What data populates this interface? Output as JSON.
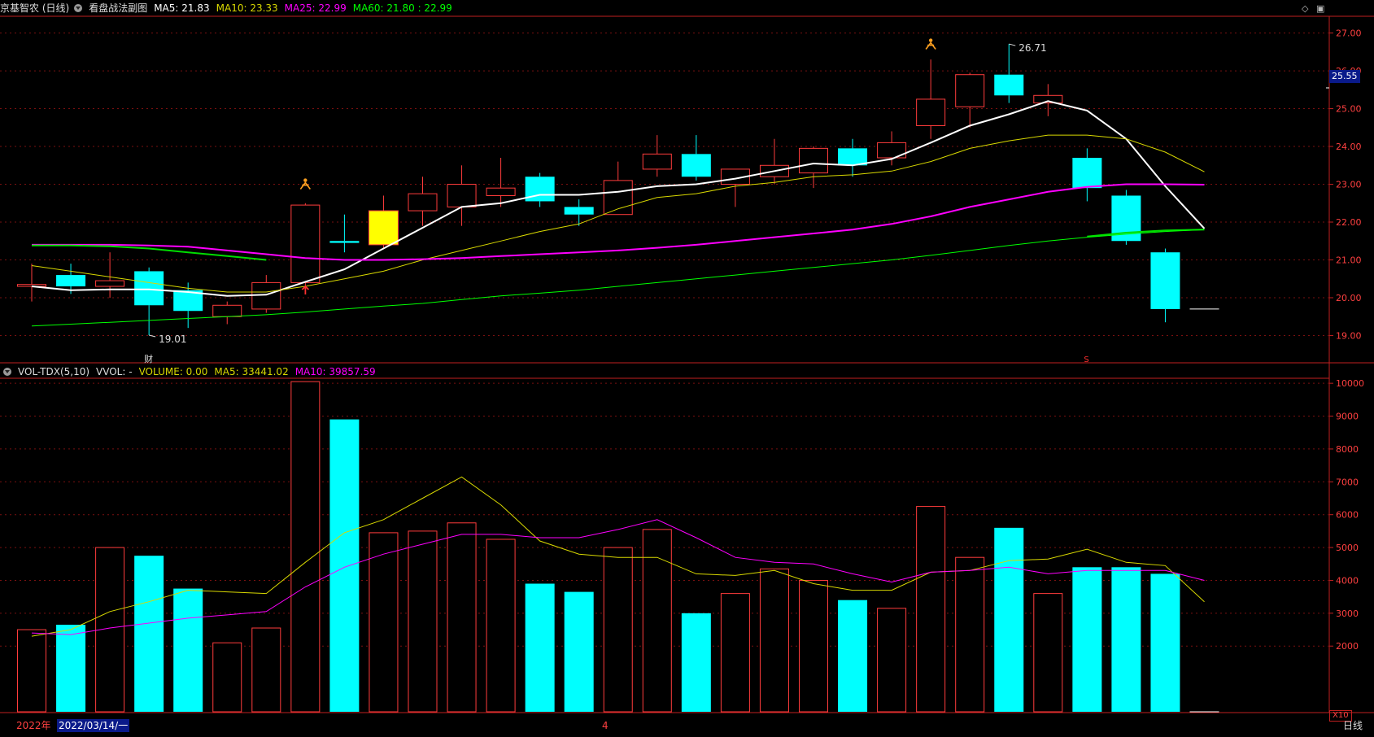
{
  "header": {
    "stock_name": "京基智农 (日线)",
    "indicator_name": "看盘战法副图",
    "ma5": "MA5: 21.83",
    "ma10": "MA10: 23.33",
    "ma25": "MA25: 22.99",
    "ma60": "MA60: 21.80 : 22.99"
  },
  "volume_header": {
    "name": "VOL-TDX(5,10)",
    "vvol": "VVOL: -",
    "volume": "VOLUME: 0.00",
    "ma5": "MA5: 33441.02",
    "ma10": "MA10: 39857.59"
  },
  "footer": {
    "year": "2022年",
    "date": "2022/03/14/一",
    "month_marker": "4",
    "period": "日线",
    "multiplier": "X10"
  },
  "markers": {
    "high_label": "26.71",
    "low_label": "19.01",
    "current_price": "25.55",
    "finance_mark": "财",
    "s_mark": "S"
  },
  "colors": {
    "up": "#ff3c3c",
    "down": "#00ffff",
    "ma5": "#ffffff",
    "ma10": "#d8d800",
    "ma25": "#ff00ff",
    "ma60": "#00ff00",
    "grid": "#7a1010",
    "axis": "#c02020"
  },
  "chart_data": [
    {
      "type": "candlestick",
      "title": "京基智农 (日线)",
      "ylim": [
        18.3,
        27.4
      ],
      "y_ticks": [
        "19.00",
        "20.00",
        "21.00",
        "22.00",
        "23.00",
        "24.00",
        "25.00",
        "26.00",
        "27.00"
      ],
      "candles": [
        {
          "o": 20.3,
          "c": 20.35,
          "h": 20.9,
          "l": 19.9
        },
        {
          "o": 20.6,
          "c": 20.3,
          "h": 20.9,
          "l": 20.1
        },
        {
          "o": 20.3,
          "c": 20.45,
          "h": 21.2,
          "l": 20.0
        },
        {
          "o": 20.7,
          "c": 19.8,
          "h": 20.8,
          "l": 19.01
        },
        {
          "o": 20.2,
          "c": 19.65,
          "h": 20.4,
          "l": 19.2
        },
        {
          "o": 19.5,
          "c": 19.8,
          "h": 19.9,
          "l": 19.3
        },
        {
          "o": 19.7,
          "c": 20.4,
          "h": 20.6,
          "l": 19.6
        },
        {
          "o": 20.4,
          "c": 22.45,
          "h": 22.5,
          "l": 20.1
        },
        {
          "o": 21.5,
          "c": 21.45,
          "h": 22.2,
          "l": 21.2
        },
        {
          "o": 21.4,
          "c": 22.3,
          "h": 22.7,
          "l": 21.3,
          "yellow": true
        },
        {
          "o": 22.3,
          "c": 22.75,
          "h": 23.2,
          "l": 21.9
        },
        {
          "o": 22.4,
          "c": 23.0,
          "h": 23.5,
          "l": 21.9
        },
        {
          "o": 22.7,
          "c": 22.9,
          "h": 23.7,
          "l": 22.4
        },
        {
          "o": 23.2,
          "c": 22.55,
          "h": 23.3,
          "l": 22.4
        },
        {
          "o": 22.4,
          "c": 22.2,
          "h": 22.6,
          "l": 21.9
        },
        {
          "o": 22.2,
          "c": 23.1,
          "h": 23.6,
          "l": 22.2
        },
        {
          "o": 23.4,
          "c": 23.8,
          "h": 24.3,
          "l": 23.2
        },
        {
          "o": 23.8,
          "c": 23.2,
          "h": 24.3,
          "l": 23.1
        },
        {
          "o": 23.0,
          "c": 23.4,
          "h": 23.4,
          "l": 22.4
        },
        {
          "o": 23.2,
          "c": 23.5,
          "h": 24.2,
          "l": 23.0
        },
        {
          "o": 23.3,
          "c": 23.95,
          "h": 24.0,
          "l": 22.9
        },
        {
          "o": 23.95,
          "c": 23.5,
          "h": 24.2,
          "l": 23.2
        },
        {
          "o": 23.7,
          "c": 24.1,
          "h": 24.4,
          "l": 23.5
        },
        {
          "o": 24.55,
          "c": 25.25,
          "h": 26.3,
          "l": 24.2
        },
        {
          "o": 25.05,
          "c": 25.9,
          "h": 25.95,
          "l": 24.5
        },
        {
          "o": 25.9,
          "c": 25.35,
          "h": 26.71,
          "l": 25.15
        },
        {
          "o": 25.15,
          "c": 25.35,
          "h": 25.65,
          "l": 24.8
        },
        {
          "o": 23.7,
          "c": 22.9,
          "h": 23.95,
          "l": 22.55
        },
        {
          "o": 22.7,
          "c": 21.5,
          "h": 22.85,
          "l": 21.4
        },
        {
          "o": 21.2,
          "c": 19.7,
          "h": 21.3,
          "l": 19.35
        },
        {
          "o": 19.7,
          "c": 19.7,
          "h": 19.7,
          "l": 19.7,
          "flat": true
        }
      ],
      "series": [
        {
          "name": "MA5",
          "color": "#ffffff",
          "width": 2,
          "values": [
            20.3,
            20.2,
            20.22,
            20.22,
            20.15,
            20.05,
            20.08,
            20.42,
            20.75,
            21.3,
            21.85,
            22.4,
            22.5,
            22.72,
            22.72,
            22.8,
            22.95,
            23.0,
            23.15,
            23.35,
            23.55,
            23.5,
            23.67,
            24.1,
            24.55,
            24.85,
            25.2,
            24.95,
            24.2,
            22.95,
            21.83
          ]
        },
        {
          "name": "MA10",
          "color": "#d8d800",
          "width": 1,
          "values": [
            20.85,
            20.7,
            20.55,
            20.4,
            20.25,
            20.15,
            20.15,
            20.3,
            20.5,
            20.7,
            21.0,
            21.25,
            21.5,
            21.75,
            21.95,
            22.35,
            22.65,
            22.75,
            22.95,
            23.05,
            23.2,
            23.25,
            23.35,
            23.6,
            23.95,
            24.15,
            24.3,
            24.3,
            24.2,
            23.85,
            23.33
          ]
        },
        {
          "name": "MA25",
          "color": "#ff00ff",
          "width": 2,
          "values": [
            21.4,
            21.4,
            21.4,
            21.38,
            21.35,
            21.25,
            21.15,
            21.05,
            21.0,
            21.0,
            21.02,
            21.05,
            21.1,
            21.15,
            21.2,
            21.25,
            21.32,
            21.4,
            21.5,
            21.6,
            21.7,
            21.8,
            21.95,
            22.15,
            22.4,
            22.6,
            22.8,
            22.93,
            23.0,
            23.0,
            22.99
          ]
        },
        {
          "name": "MA25b",
          "color": "#00dd00",
          "width": 2,
          "values": [
            21.38,
            21.38,
            21.36,
            21.3,
            21.2,
            21.1,
            21.0,
            null,
            null,
            null,
            null,
            null,
            null,
            null,
            null,
            null,
            null,
            null,
            null,
            null,
            null,
            null,
            null,
            null,
            null,
            null,
            null,
            21.62,
            21.72,
            21.78,
            21.8
          ]
        },
        {
          "name": "MA60",
          "color": "#00ff00",
          "width": 1,
          "values": [
            19.25,
            19.3,
            19.35,
            19.4,
            19.45,
            19.5,
            19.55,
            19.62,
            19.7,
            19.78,
            19.85,
            19.95,
            20.05,
            20.12,
            20.2,
            20.3,
            20.4,
            20.5,
            20.6,
            20.7,
            20.8,
            20.9,
            21.0,
            21.12,
            21.25,
            21.38,
            21.5,
            21.6,
            21.68,
            21.75,
            21.8
          ]
        }
      ]
    },
    {
      "type": "bar",
      "title": "VOL-TDX(5,10)",
      "ylim": [
        0,
        10400
      ],
      "y_ticks": [
        "2000",
        "3000",
        "4000",
        "5000",
        "6000",
        "7000",
        "8000",
        "9000",
        "10000"
      ],
      "values": [
        2500,
        2650,
        5000,
        4750,
        3750,
        2100,
        2550,
        10050,
        8900,
        5450,
        5500,
        5750,
        5250,
        3900,
        3650,
        5000,
        5550,
        3000,
        3600,
        4350,
        4000,
        3400,
        3150,
        6250,
        4700,
        5600,
        3600,
        4400,
        4400,
        4200,
        0
      ],
      "up": [
        true,
        false,
        true,
        false,
        false,
        true,
        true,
        true,
        false,
        true,
        true,
        true,
        true,
        false,
        false,
        true,
        true,
        false,
        true,
        true,
        true,
        false,
        true,
        true,
        true,
        false,
        true,
        false,
        false,
        false,
        true
      ],
      "series": [
        {
          "name": "MA5",
          "color": "#d8d800",
          "values": [
            2300,
            2500,
            3050,
            3350,
            3700,
            3650,
            3600,
            4550,
            5450,
            5850,
            6500,
            7150,
            6300,
            5200,
            4800,
            4700,
            4700,
            4200,
            4150,
            4300,
            3900,
            3700,
            3700,
            4250,
            4300,
            4600,
            4650,
            4950,
            4550,
            4450,
            3350
          ]
        },
        {
          "name": "MA10",
          "color": "#ff00ff",
          "values": [
            2400,
            2350,
            2550,
            2700,
            2850,
            2950,
            3050,
            3800,
            4400,
            4800,
            5100,
            5400,
            5400,
            5300,
            5300,
            5550,
            5850,
            5300,
            4700,
            4550,
            4500,
            4200,
            3950,
            4250,
            4300,
            4400,
            4200,
            4300,
            4300,
            4300,
            4000
          ]
        }
      ]
    }
  ]
}
